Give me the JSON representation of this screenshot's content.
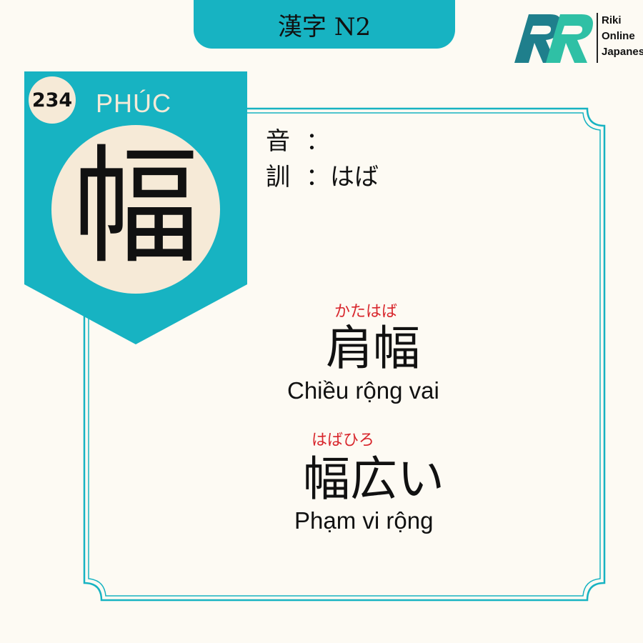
{
  "header": {
    "title": "漢字 N2"
  },
  "logo": {
    "line1": "Riki",
    "line2": "Online",
    "line3": "Japanese",
    "color_dark": "#1f7f8c",
    "color_light": "#2fc0a5"
  },
  "card": {
    "number": "234",
    "han_viet": "PHÚC",
    "kanji": "幅",
    "on_label": "音",
    "on_reading": "",
    "kun_label": "訓",
    "kun_reading": "はば",
    "separator": "："
  },
  "vocabulary": [
    {
      "furigana": "かたはば",
      "word": "肩幅",
      "meaning": "Chiều rộng vai"
    },
    {
      "furigana": "はばひろ",
      "word": "幅広い",
      "meaning": "Phạm vi rộng"
    }
  ],
  "colors": {
    "teal": "#17b3c2",
    "cream": "#f6ead7",
    "background": "#fdfaf3",
    "furigana_red": "#d8262c"
  }
}
